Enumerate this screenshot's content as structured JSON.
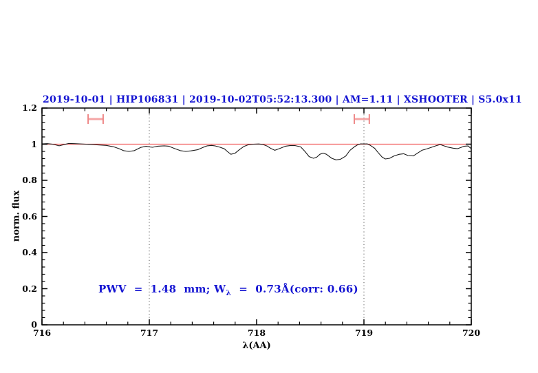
{
  "title": {
    "text": "2019-10-01 | HIP106831 | 2019-10-02T05:52:13.300 | AM=1.11 | XSHOOTER | S5.0x11",
    "color": "#1414d2"
  },
  "annotation": {
    "prefix": "PWV  =  1.48  mm; W",
    "subscript": "λ",
    "suffix": "  =  0.73Å(corr: 0.66)",
    "color": "#1414d2"
  },
  "chart_data": {
    "type": "line",
    "xlabel": "λ(AA)",
    "ylabel": "norm. flux",
    "xlim": [
      716,
      720
    ],
    "ylim": [
      0,
      1.2
    ],
    "x_major_ticks": [
      716,
      717,
      718,
      719,
      720
    ],
    "x_tick_labels": [
      "716",
      "717",
      "718",
      "719",
      "720"
    ],
    "x_minor_step": 0.2,
    "y_major_ticks": [
      0,
      0.2,
      0.4,
      0.6,
      0.8,
      1,
      1.2
    ],
    "y_tick_labels": [
      "0",
      "0.2",
      "0.4",
      "0.6",
      "0.8",
      "1",
      "1.2"
    ],
    "y_minor_step": 0.04,
    "grid": "off",
    "legend": "none",
    "axis_color": "#000000",
    "reference_vlines": {
      "x": [
        717,
        719
      ],
      "color": "#555555",
      "style": "dotted"
    },
    "continuum_line": {
      "y": 1.0,
      "color": "#f15e5e"
    },
    "band_markers": {
      "bar_color": "#f5a6a6",
      "cap_color": "#ee8787",
      "items": [
        {
          "x_center": 716.5,
          "x_half_width": 0.07,
          "y_center": 1.139,
          "y_half_height": 0.027
        },
        {
          "x_center": 718.98,
          "x_half_width": 0.07,
          "y_center": 1.139,
          "y_half_height": 0.027
        }
      ]
    },
    "series": [
      {
        "name": "observed-spectrum",
        "color": "#1b1b1b",
        "points": [
          [
            716.0,
            1.002
          ],
          [
            716.05,
            1.003
          ],
          [
            716.1,
            1.0
          ],
          [
            716.16,
            0.991
          ],
          [
            716.2,
            0.997
          ],
          [
            716.25,
            1.004
          ],
          [
            716.3,
            1.003
          ],
          [
            716.35,
            1.002
          ],
          [
            716.41,
            1.0
          ],
          [
            716.46,
            0.999
          ],
          [
            716.5,
            0.997
          ],
          [
            716.55,
            0.995
          ],
          [
            716.6,
            0.993
          ],
          [
            716.67,
            0.985
          ],
          [
            716.72,
            0.975
          ],
          [
            716.76,
            0.964
          ],
          [
            716.81,
            0.96
          ],
          [
            716.86,
            0.964
          ],
          [
            716.92,
            0.982
          ],
          [
            716.97,
            0.988
          ],
          [
            717.0,
            0.985
          ],
          [
            717.03,
            0.983
          ],
          [
            717.08,
            0.989
          ],
          [
            717.14,
            0.991
          ],
          [
            717.18,
            0.989
          ],
          [
            717.23,
            0.977
          ],
          [
            717.29,
            0.964
          ],
          [
            717.34,
            0.96
          ],
          [
            717.39,
            0.963
          ],
          [
            717.45,
            0.969
          ],
          [
            717.5,
            0.982
          ],
          [
            717.54,
            0.991
          ],
          [
            717.58,
            0.993
          ],
          [
            717.61,
            0.991
          ],
          [
            717.66,
            0.983
          ],
          [
            717.7,
            0.974
          ],
          [
            717.73,
            0.958
          ],
          [
            717.76,
            0.944
          ],
          [
            717.8,
            0.95
          ],
          [
            717.84,
            0.97
          ],
          [
            717.88,
            0.987
          ],
          [
            717.92,
            0.996
          ],
          [
            717.97,
            1.0
          ],
          [
            718.02,
            1.001
          ],
          [
            718.06,
            0.998
          ],
          [
            718.1,
            0.989
          ],
          [
            718.13,
            0.977
          ],
          [
            718.17,
            0.966
          ],
          [
            718.22,
            0.977
          ],
          [
            718.27,
            0.989
          ],
          [
            718.31,
            0.992
          ],
          [
            718.36,
            0.992
          ],
          [
            718.41,
            0.985
          ],
          [
            718.45,
            0.96
          ],
          [
            718.49,
            0.931
          ],
          [
            718.53,
            0.922
          ],
          [
            718.56,
            0.928
          ],
          [
            718.59,
            0.944
          ],
          [
            718.62,
            0.951
          ],
          [
            718.65,
            0.944
          ],
          [
            718.7,
            0.922
          ],
          [
            718.74,
            0.913
          ],
          [
            718.78,
            0.916
          ],
          [
            718.83,
            0.934
          ],
          [
            718.87,
            0.966
          ],
          [
            718.91,
            0.985
          ],
          [
            718.94,
            0.996
          ],
          [
            718.97,
            1.002
          ],
          [
            719.0,
            1.001
          ],
          [
            719.03,
            1.002
          ],
          [
            719.06,
            0.993
          ],
          [
            719.1,
            0.977
          ],
          [
            719.13,
            0.955
          ],
          [
            719.17,
            0.928
          ],
          [
            719.2,
            0.918
          ],
          [
            719.24,
            0.922
          ],
          [
            719.28,
            0.935
          ],
          [
            719.33,
            0.944
          ],
          [
            719.37,
            0.947
          ],
          [
            719.41,
            0.937
          ],
          [
            719.46,
            0.935
          ],
          [
            719.5,
            0.951
          ],
          [
            719.54,
            0.966
          ],
          [
            719.59,
            0.975
          ],
          [
            719.63,
            0.983
          ],
          [
            719.67,
            0.991
          ],
          [
            719.71,
            0.998
          ],
          [
            719.74,
            0.992
          ],
          [
            719.78,
            0.984
          ],
          [
            719.83,
            0.978
          ],
          [
            719.87,
            0.975
          ],
          [
            719.9,
            0.981
          ],
          [
            719.93,
            0.988
          ],
          [
            719.97,
            0.99
          ],
          [
            720.0,
            0.975
          ]
        ]
      }
    ]
  }
}
